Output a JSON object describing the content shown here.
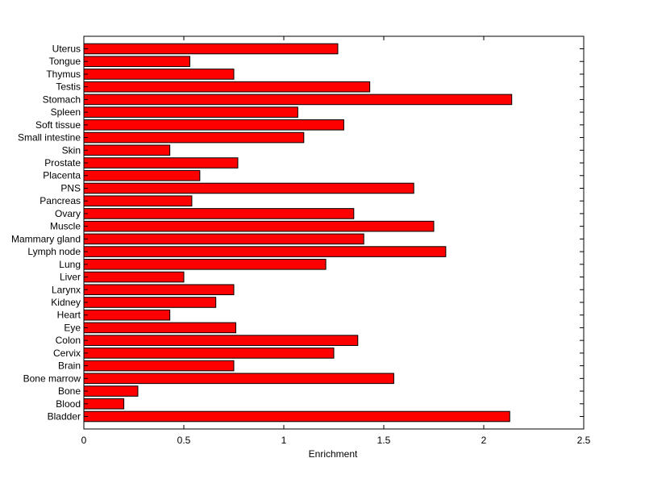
{
  "chart_data": {
    "type": "bar",
    "orientation": "horizontal",
    "title": "",
    "xlabel": "Enrichment",
    "ylabel": "",
    "xlim": [
      0,
      2.5
    ],
    "xticks": [
      "0",
      "0.5",
      "1",
      "1.5",
      "2",
      "2.5"
    ],
    "bar_color": "#ff0000",
    "bar_edge_color": "#000000",
    "grid": false,
    "categories": [
      "Bladder",
      "Blood",
      "Bone",
      "Bone marrow",
      "Brain",
      "Cervix",
      "Colon",
      "Eye",
      "Heart",
      "Kidney",
      "Larynx",
      "Liver",
      "Lung",
      "Lymph node",
      "Mammary gland",
      "Muscle",
      "Ovary",
      "Pancreas",
      "PNS",
      "Placenta",
      "Prostate",
      "Skin",
      "Small intestine",
      "Soft tissue",
      "Spleen",
      "Stomach",
      "Testis",
      "Thymus",
      "Tongue",
      "Uterus"
    ],
    "values": [
      2.13,
      0.2,
      0.27,
      1.55,
      0.75,
      1.25,
      1.37,
      0.76,
      0.43,
      0.66,
      0.75,
      0.5,
      1.21,
      1.81,
      1.4,
      1.75,
      1.35,
      0.54,
      1.65,
      0.58,
      0.77,
      0.43,
      1.1,
      1.3,
      1.07,
      2.14,
      1.43,
      0.75,
      0.53,
      1.27
    ]
  }
}
